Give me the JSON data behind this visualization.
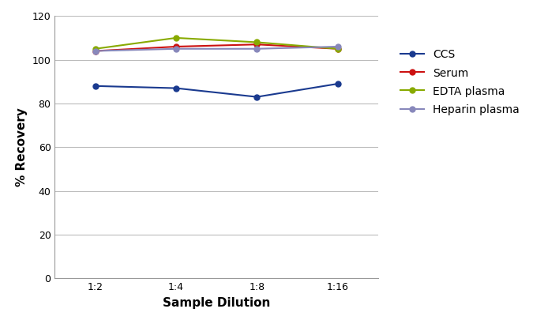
{
  "xlabel": "Sample Dilution",
  "ylabel": "% Recovery",
  "x_labels": [
    "1:2",
    "1:4",
    "1:8",
    "1:16"
  ],
  "x_values": [
    1,
    2,
    3,
    4
  ],
  "series": [
    {
      "name": "CCS",
      "color": "#1a3a8f",
      "values": [
        88,
        87,
        83,
        89
      ]
    },
    {
      "name": "Serum",
      "color": "#cc1111",
      "values": [
        104,
        106,
        107,
        105
      ]
    },
    {
      "name": "EDTA plasma",
      "color": "#88aa00",
      "values": [
        105,
        110,
        108,
        105
      ]
    },
    {
      "name": "Heparin plasma",
      "color": "#8888bb",
      "values": [
        104,
        105,
        105,
        106
      ]
    }
  ],
  "ylim": [
    0,
    120
  ],
  "yticks": [
    0,
    20,
    40,
    60,
    80,
    100,
    120
  ],
  "background_color": "#ffffff",
  "grid_color": "#bbbbbb",
  "marker": "o",
  "marker_size": 5,
  "linewidth": 1.5,
  "tick_fontsize": 9,
  "label_fontsize": 11
}
